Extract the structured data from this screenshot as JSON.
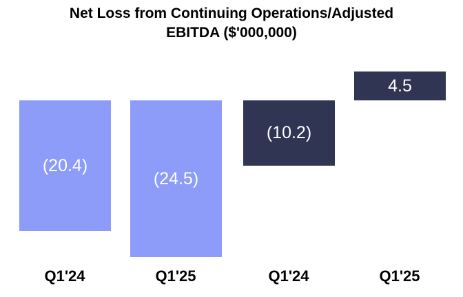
{
  "page": {
    "background": "#FFFFFF"
  },
  "chart_data": {
    "type": "bar",
    "title": "Net Loss from Continuing Operations/Adjusted EBITDA ($'000,000)",
    "title_lines": [
      "Net Loss from Continuing Operations/Adjusted",
      "EBITDA ($'000,000)"
    ],
    "categories": [
      "Q1'24",
      "Q1'25",
      "Q1'24",
      "Q1'25"
    ],
    "series": [
      {
        "name": "Net Loss from Continuing Operations",
        "color": "#8C9CF8",
        "values": [
          -20.4,
          -24.5,
          null,
          null
        ]
      },
      {
        "name": "Adjusted EBITDA",
        "color": "#2F3553",
        "values": [
          null,
          null,
          -10.2,
          4.5
        ]
      }
    ],
    "bars": [
      {
        "category": "Q1'24",
        "value": -20.4,
        "label": "(20.4)",
        "color": "#8C9CF8"
      },
      {
        "category": "Q1'25",
        "value": -24.5,
        "label": "(24.5)",
        "color": "#8C9CF8"
      },
      {
        "category": "Q1'24",
        "value": -10.2,
        "label": "(10.2)",
        "color": "#2F3553"
      },
      {
        "category": "Q1'25",
        "value": 4.5,
        "label": "4.5",
        "color": "#2F3553"
      }
    ],
    "data_label_color": "#FFFFFF",
    "negative_format": "parentheses",
    "axes": {
      "baseline_value": 0,
      "gridlines": false,
      "y_axis_visible": false,
      "x_axis_line_visible": false
    },
    "ylim": [
      -24.5,
      4.5
    ],
    "legend": "none"
  }
}
